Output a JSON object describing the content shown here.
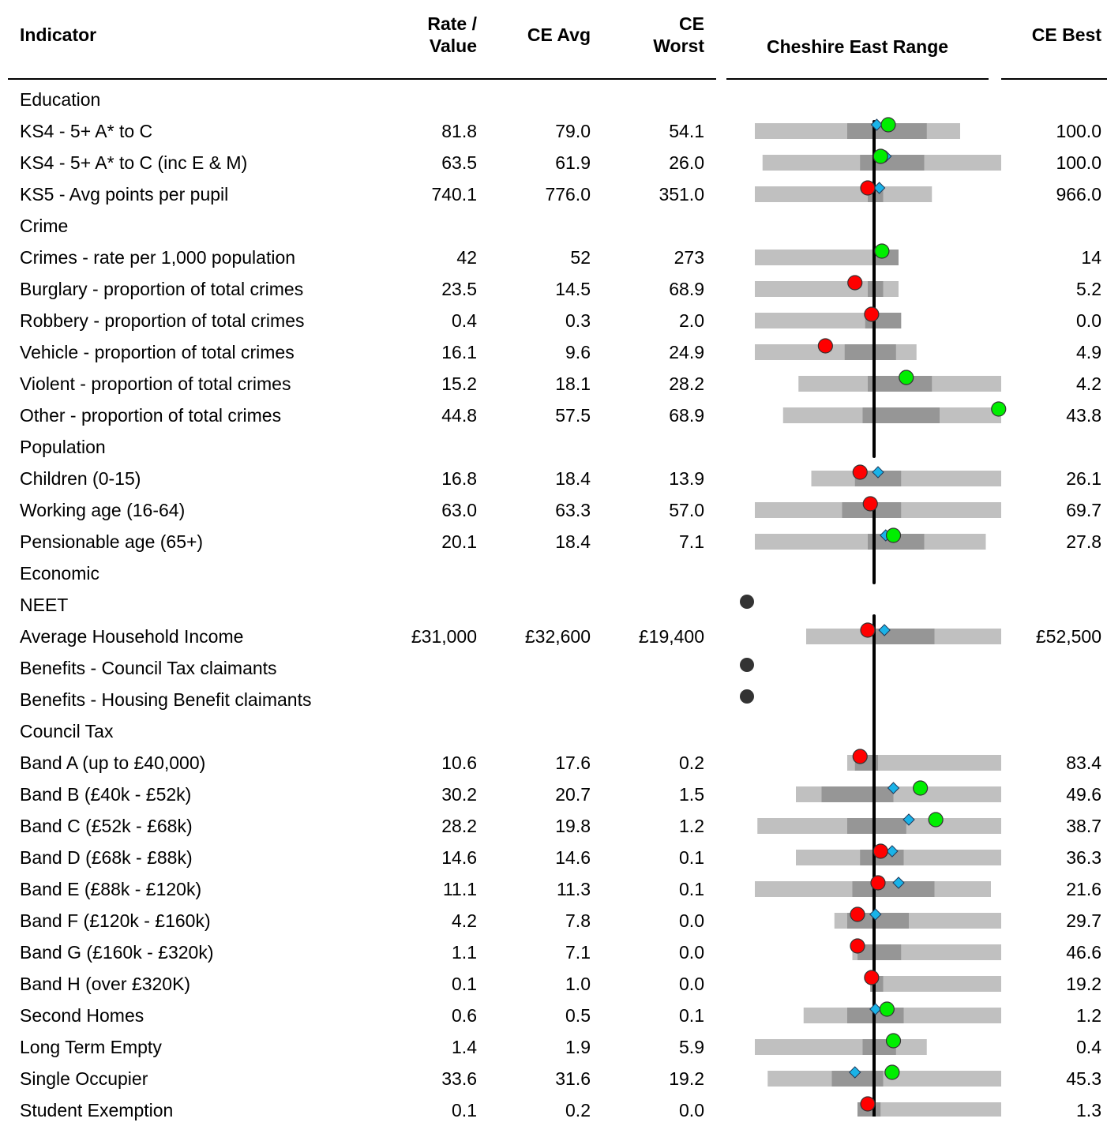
{
  "header": {
    "indicator": "Indicator",
    "rate_line1": "Rate /",
    "rate_line2": "Value",
    "ce_avg": "CE Avg",
    "ce_worst_line1": "CE",
    "ce_worst_line2": "Worst",
    "range": "Cheshire East Range",
    "ce_best": "CE Best"
  },
  "colors": {
    "outer_bar": "#c0c0c0",
    "inner_bar": "#969696",
    "marker_good": "#00ee00",
    "marker_bad": "#ff0000",
    "diamond": "#1ab3e8",
    "no_data_dot": "#333333",
    "avg_line": "#000000"
  },
  "rows": [
    {
      "label": "Education",
      "section": true
    },
    {
      "label": "KS4 - 5+ A* to C",
      "rate": "81.8",
      "avg": "79.0",
      "worst": "54.1",
      "best": "100.0",
      "range": {
        "outer": [
          0.04,
          0.84
        ],
        "inner": [
          0.4,
          0.71
        ],
        "diamond": 0.515,
        "marker": 0.56,
        "status": "good"
      }
    },
    {
      "label": "KS4 - 5+ A* to C (inc E & M)",
      "rate": "63.5",
      "avg": "61.9",
      "worst": "26.0",
      "best": "100.0",
      "range": {
        "outer": [
          0.07,
          1.0
        ],
        "inner": [
          0.45,
          0.7
        ],
        "diamond": 0.55,
        "marker": 0.53,
        "status": "good"
      }
    },
    {
      "label": "KS5 - Avg points per pupil",
      "rate": "740.1",
      "avg": "776.0",
      "worst": "351.0",
      "best": "966.0",
      "range": {
        "outer": [
          0.04,
          0.73
        ],
        "inner": [
          0.48,
          0.54
        ],
        "diamond": 0.525,
        "marker": 0.48,
        "status": "bad"
      }
    },
    {
      "label": "Crime",
      "section": true
    },
    {
      "label": "Crimes - rate per 1,000 population",
      "rate": "42",
      "avg": "52",
      "worst": "273",
      "best": "14",
      "range": {
        "outer": [
          0.04,
          0.6
        ],
        "inner": [
          0.5,
          0.6
        ],
        "diamond": null,
        "marker": 0.535,
        "status": "good"
      }
    },
    {
      "label": "Burglary - proportion of total crimes",
      "rate": "23.5",
      "avg": "14.5",
      "worst": "68.9",
      "best": "5.2",
      "range": {
        "outer": [
          0.04,
          0.6
        ],
        "inner": [
          0.48,
          0.54
        ],
        "diamond": null,
        "marker": 0.43,
        "status": "bad"
      }
    },
    {
      "label": "Robbery - proportion of total crimes",
      "rate": "0.4",
      "avg": "0.3",
      "worst": "2.0",
      "best": "0.0",
      "range": {
        "outer": [
          0.04,
          0.61
        ],
        "inner": [
          0.47,
          0.61
        ],
        "diamond": null,
        "marker": 0.495,
        "status": "bad"
      }
    },
    {
      "label": "Vehicle - proportion of total crimes",
      "rate": "16.1",
      "avg": "9.6",
      "worst": "24.9",
      "best": "4.9",
      "range": {
        "outer": [
          0.04,
          0.67
        ],
        "inner": [
          0.39,
          0.59
        ],
        "diamond": null,
        "marker": 0.315,
        "status": "bad"
      }
    },
    {
      "label": "Violent - proportion of total crimes",
      "rate": "15.2",
      "avg": "18.1",
      "worst": "28.2",
      "best": "4.2",
      "range": {
        "outer": [
          0.21,
          1.0
        ],
        "inner": [
          0.48,
          0.73
        ],
        "diamond": null,
        "marker": 0.63,
        "status": "good"
      }
    },
    {
      "label": "Other - proportion of total crimes",
      "rate": "44.8",
      "avg": "57.5",
      "worst": "68.9",
      "best": "43.8",
      "range": {
        "outer": [
          0.15,
          1.0
        ],
        "inner": [
          0.46,
          0.76
        ],
        "diamond": null,
        "marker": 0.99,
        "status": "good"
      }
    },
    {
      "label": "Population",
      "section": true
    },
    {
      "label": "Children (0-15)",
      "rate": "16.8",
      "avg": "18.4",
      "worst": "13.9",
      "best": "26.1",
      "range": {
        "outer": [
          0.26,
          1.0
        ],
        "inner": [
          0.43,
          0.61
        ],
        "diamond": 0.52,
        "marker": 0.45,
        "status": "bad"
      }
    },
    {
      "label": "Working age (16-64)",
      "rate": "63.0",
      "avg": "63.3",
      "worst": "57.0",
      "best": "69.7",
      "range": {
        "outer": [
          0.04,
          1.0
        ],
        "inner": [
          0.38,
          0.61
        ],
        "diamond": null,
        "marker": 0.49,
        "status": "bad"
      }
    },
    {
      "label": "Pensionable age (65+)",
      "rate": "20.1",
      "avg": "18.4",
      "worst": "7.1",
      "best": "27.8",
      "range": {
        "outer": [
          0.04,
          0.94
        ],
        "inner": [
          0.48,
          0.7
        ],
        "diamond": 0.55,
        "marker": 0.58,
        "status": "good"
      }
    },
    {
      "label": "Economic",
      "section": true
    },
    {
      "label": "NEET",
      "nodata": true
    },
    {
      "label": "Average Household Income",
      "rate": "£31,000",
      "avg": "£32,600",
      "worst": "£19,400",
      "best": "£52,500",
      "range": {
        "outer": [
          0.24,
          1.0
        ],
        "inner": [
          0.5,
          0.74
        ],
        "diamond": 0.545,
        "marker": 0.48,
        "status": "bad"
      }
    },
    {
      "label": "Benefits - Council Tax claimants",
      "nodata": true
    },
    {
      "label": "Benefits - Housing Benefit claimants",
      "nodata": true
    },
    {
      "label": "Council Tax",
      "section": true
    },
    {
      "label": "Band A (up to £40,000)",
      "rate": "10.6",
      "avg": "17.6",
      "worst": "0.2",
      "best": "83.4",
      "range": {
        "outer": [
          0.4,
          1.0
        ],
        "inner": [
          0.43,
          0.52
        ],
        "diamond": null,
        "marker": 0.45,
        "status": "bad"
      }
    },
    {
      "label": "Band B (£40k - £52k)",
      "rate": "30.2",
      "avg": "20.7",
      "worst": "1.5",
      "best": "49.6",
      "range": {
        "outer": [
          0.2,
          1.0
        ],
        "inner": [
          0.3,
          0.58
        ],
        "diamond": 0.58,
        "marker": 0.685,
        "status": "good"
      }
    },
    {
      "label": "Band C (£52k - £68k)",
      "rate": "28.2",
      "avg": "19.8",
      "worst": "1.2",
      "best": "38.7",
      "range": {
        "outer": [
          0.05,
          1.0
        ],
        "inner": [
          0.4,
          0.63
        ],
        "diamond": 0.64,
        "marker": 0.745,
        "status": "good"
      }
    },
    {
      "label": "Band D (£68k - £88k)",
      "rate": "14.6",
      "avg": "14.6",
      "worst": "0.1",
      "best": "36.3",
      "range": {
        "outer": [
          0.2,
          1.0
        ],
        "inner": [
          0.45,
          0.62
        ],
        "diamond": 0.575,
        "marker": 0.53,
        "status": "bad"
      }
    },
    {
      "label": "Band E (£88k - £120k)",
      "rate": "11.1",
      "avg": "11.3",
      "worst": "0.1",
      "best": "21.6",
      "range": {
        "outer": [
          0.04,
          0.96
        ],
        "inner": [
          0.42,
          0.74
        ],
        "diamond": 0.6,
        "marker": 0.52,
        "status": "bad"
      }
    },
    {
      "label": "Band F (£120k - £160k)",
      "rate": "4.2",
      "avg": "7.8",
      "worst": "0.0",
      "best": "29.7",
      "range": {
        "outer": [
          0.35,
          1.0
        ],
        "inner": [
          0.4,
          0.64
        ],
        "diamond": 0.51,
        "marker": 0.44,
        "status": "bad"
      }
    },
    {
      "label": "Band G (£160k - £320k)",
      "rate": "1.1",
      "avg": "7.1",
      "worst": "0.0",
      "best": "46.6",
      "range": {
        "outer": [
          0.42,
          1.0
        ],
        "inner": [
          0.44,
          0.61
        ],
        "diamond": null,
        "marker": 0.44,
        "status": "bad"
      }
    },
    {
      "label": "Band H (over £320K)",
      "rate": "0.1",
      "avg": "1.0",
      "worst": "0.0",
      "best": "19.2",
      "range": {
        "outer": [
          0.49,
          1.0
        ],
        "inner": [
          0.49,
          0.54
        ],
        "diamond": null,
        "marker": 0.495,
        "status": "bad"
      }
    },
    {
      "label": "Second Homes",
      "rate": "0.6",
      "avg": "0.5",
      "worst": "0.1",
      "best": "1.2",
      "range": {
        "outer": [
          0.23,
          1.0
        ],
        "inner": [
          0.4,
          0.62
        ],
        "diamond": 0.51,
        "marker": 0.555,
        "status": "good"
      }
    },
    {
      "label": "Long Term Empty",
      "rate": "1.4",
      "avg": "1.9",
      "worst": "5.9",
      "best": "0.4",
      "range": {
        "outer": [
          0.04,
          0.71
        ],
        "inner": [
          0.46,
          0.59
        ],
        "diamond": null,
        "marker": 0.58,
        "status": "good"
      }
    },
    {
      "label": "Single Occupier",
      "rate": "33.6",
      "avg": "31.6",
      "worst": "19.2",
      "best": "45.3",
      "range": {
        "outer": [
          0.09,
          1.0
        ],
        "inner": [
          0.34,
          0.54
        ],
        "diamond": 0.43,
        "marker": 0.575,
        "status": "good"
      }
    },
    {
      "label": "Student Exemption",
      "rate": "0.1",
      "avg": "0.2",
      "worst": "0.0",
      "best": "1.3",
      "range": {
        "outer": [
          0.44,
          1.0
        ],
        "inner": [
          0.44,
          0.53
        ],
        "diamond": null,
        "marker": 0.48,
        "status": "bad"
      }
    }
  ]
}
